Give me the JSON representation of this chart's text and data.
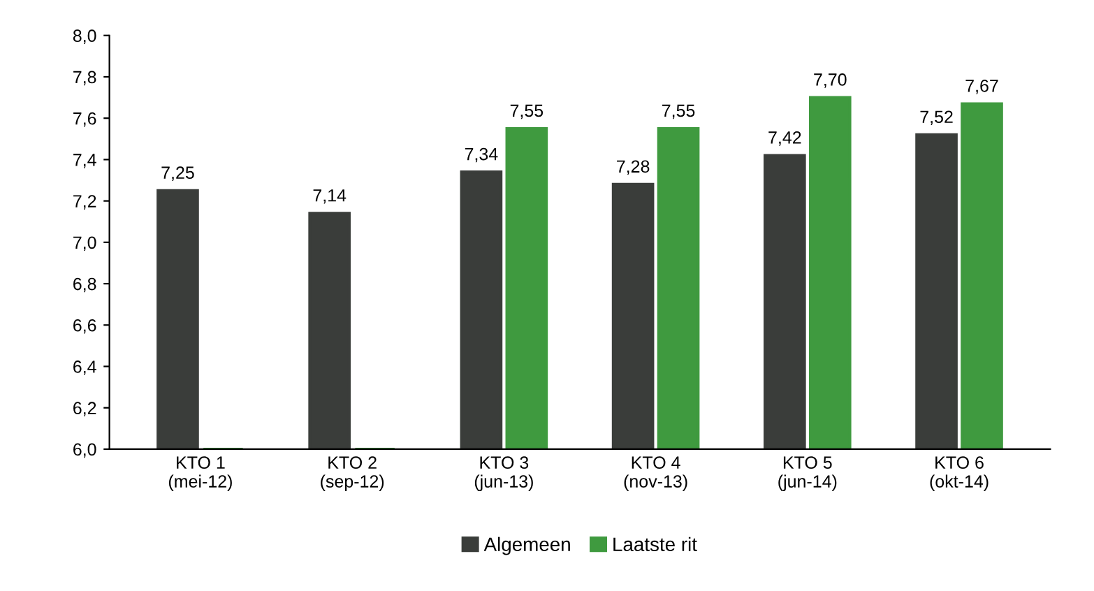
{
  "chart_data": {
    "type": "bar",
    "categories": [
      "KTO 1\n(mei-12)",
      "KTO 2\n(sep-12)",
      "KTO 3\n(jun-13)",
      "KTO 4\n(nov-13)",
      "KTO 5\n(jun-14)",
      "KTO 6\n(okt-14)"
    ],
    "series": [
      {
        "name": "Algemeen",
        "color": "#3a3d3a",
        "values": [
          7.25,
          7.14,
          7.34,
          7.28,
          7.42,
          7.52
        ],
        "value_labels": [
          "7,25",
          "7,14",
          "7,34",
          "7,28",
          "7,42",
          "7,52"
        ]
      },
      {
        "name": "Laatste rit",
        "color": "#3f9a3f",
        "values": [
          6.0,
          6.0,
          7.55,
          7.55,
          7.7,
          7.67
        ],
        "value_labels": [
          null,
          null,
          "7,55",
          "7,55",
          "7,70",
          "7,67"
        ]
      }
    ],
    "ylim": [
      6.0,
      8.0
    ],
    "yticks": [
      {
        "value": 6.0,
        "label": "6,0"
      },
      {
        "value": 6.2,
        "label": "6,2"
      },
      {
        "value": 6.4,
        "label": "6,4"
      },
      {
        "value": 6.6,
        "label": "6,6"
      },
      {
        "value": 6.8,
        "label": "6,8"
      },
      {
        "value": 7.0,
        "label": "7,0"
      },
      {
        "value": 7.2,
        "label": "7,2"
      },
      {
        "value": 7.4,
        "label": "7,4"
      },
      {
        "value": 7.6,
        "label": "7,6"
      },
      {
        "value": 7.8,
        "label": "7,8"
      },
      {
        "value": 8.0,
        "label": "8,0"
      }
    ],
    "grid": false,
    "legend": "bottom"
  }
}
